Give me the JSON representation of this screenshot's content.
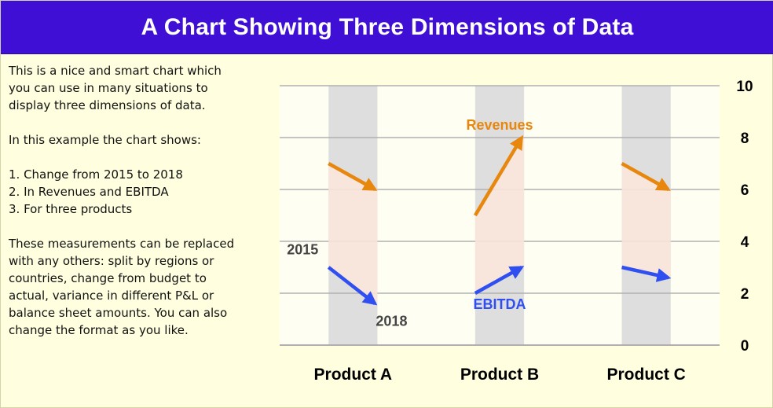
{
  "page": {
    "title": "A Chart Showing Three Dimensions of Data"
  },
  "description": {
    "paragraph1": "This is a nice and smart chart which you can use in many situations to display three dimensions of data.",
    "paragraph2": "In this example the chart shows:",
    "list": [
      "1. Change from 2015 to 2018",
      "2. In Revenues and EBITDA",
      "3. For three products"
    ],
    "paragraph3": "These measurements can be replaced with any others: split by regions or countries, change from budget to actual, variance in different P&L or balance sheet amounts. You can also change the format as you like."
  },
  "colors": {
    "title_bar": "#3f0fd6",
    "page_bg": "#ffffe0",
    "revenues": "#e8870e",
    "ebitda": "#2f4ff0",
    "column_shade": "#dedede",
    "area_fill": "#fde8dc"
  },
  "chart_data": {
    "type": "line",
    "categories": [
      "Product A",
      "Product B",
      "Product C"
    ],
    "x_points": [
      "2015",
      "2018"
    ],
    "series": [
      {
        "name": "Revenues",
        "values": [
          [
            7,
            6
          ],
          [
            5,
            8
          ],
          [
            7,
            6
          ]
        ]
      },
      {
        "name": "EBITDA",
        "values": [
          [
            3,
            1.6
          ],
          [
            2,
            3
          ],
          [
            3,
            2.6
          ]
        ]
      }
    ],
    "annotations": {
      "start": "2015",
      "end": "2018"
    },
    "ylim": [
      0,
      10
    ],
    "yticks": [
      0,
      2,
      4,
      6,
      8,
      10
    ],
    "y_axis_position": "right",
    "grid": true,
    "legend": "none"
  }
}
